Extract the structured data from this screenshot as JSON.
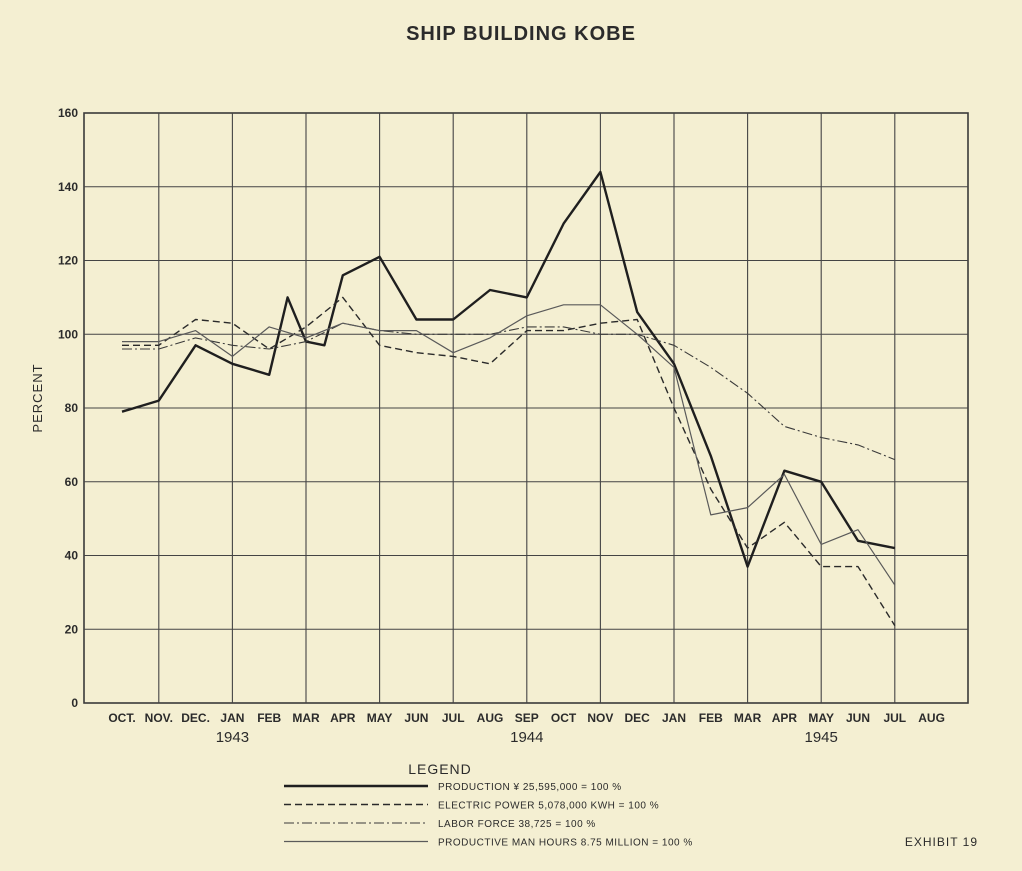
{
  "chart_data": {
    "type": "line",
    "title": "SHIP BUILDING KOBE",
    "ylabel": "PERCENT",
    "ylim": [
      0,
      160
    ],
    "yticks": [
      "0",
      "20",
      "40",
      "60",
      "80",
      "100",
      "120",
      "140",
      "160"
    ],
    "categories": [
      "OCT.",
      "NOV.",
      "DEC.",
      "JAN",
      "FEB",
      "MAR",
      "APR",
      "MAY",
      "JUN",
      "JUL",
      "AUG",
      "SEP",
      "OCT",
      "NOV",
      "DEC",
      "JAN",
      "FEB",
      "MAR",
      "APR",
      "MAY",
      "JUN",
      "JUL",
      "AUG"
    ],
    "years": [
      {
        "label": "1943",
        "center_index": 3
      },
      {
        "label": "1944",
        "center_index": 11
      },
      {
        "label": "1945",
        "center_index": 19
      }
    ],
    "grid": true,
    "series": [
      {
        "name": "PRODUCTION ¥ 25,595,000 = 100 %",
        "style": "solid-heavy",
        "points": [
          [
            0,
            79
          ],
          [
            1,
            82
          ],
          [
            2,
            97
          ],
          [
            3,
            92
          ],
          [
            4,
            89
          ],
          [
            4.5,
            110
          ],
          [
            5,
            98
          ],
          [
            5.5,
            97
          ],
          [
            6,
            116
          ],
          [
            7,
            121
          ],
          [
            8,
            104
          ],
          [
            9,
            104
          ],
          [
            10,
            112
          ],
          [
            11,
            110
          ],
          [
            12,
            130
          ],
          [
            13,
            144
          ],
          [
            14,
            106
          ],
          [
            15,
            92
          ],
          [
            16,
            67
          ],
          [
            17,
            37
          ],
          [
            18,
            63
          ],
          [
            19,
            60
          ],
          [
            20,
            44
          ],
          [
            21,
            42
          ]
        ]
      },
      {
        "name": "ELECTRIC POWER 5,078,000 KWH = 100 %",
        "style": "dashed",
        "points": [
          [
            0,
            97
          ],
          [
            1,
            97
          ],
          [
            2,
            104
          ],
          [
            3,
            103
          ],
          [
            4,
            96
          ],
          [
            5,
            102
          ],
          [
            6,
            110
          ],
          [
            7,
            97
          ],
          [
            8,
            95
          ],
          [
            9,
            94
          ],
          [
            10,
            92
          ],
          [
            11,
            101
          ],
          [
            12,
            101
          ],
          [
            13,
            103
          ],
          [
            14,
            104
          ],
          [
            15,
            80
          ],
          [
            16,
            58
          ],
          [
            17,
            42
          ],
          [
            18,
            49
          ],
          [
            19,
            37
          ],
          [
            20,
            37
          ],
          [
            21,
            21
          ]
        ]
      },
      {
        "name": "LABOR FORCE 38,725 = 100 %",
        "style": "dash-dot",
        "points": [
          [
            0,
            96
          ],
          [
            1,
            96
          ],
          [
            2,
            99
          ],
          [
            3,
            97
          ],
          [
            4,
            96
          ],
          [
            5,
            98
          ],
          [
            6,
            103
          ],
          [
            7,
            101
          ],
          [
            8,
            100
          ],
          [
            9,
            100
          ],
          [
            10,
            100
          ],
          [
            11,
            102
          ],
          [
            12,
            102
          ],
          [
            13,
            100
          ],
          [
            14,
            100
          ],
          [
            15,
            97
          ],
          [
            16,
            91
          ],
          [
            17,
            84
          ],
          [
            18,
            75
          ],
          [
            19,
            72
          ],
          [
            20,
            70
          ],
          [
            21,
            66
          ]
        ]
      },
      {
        "name": "PRODUCTIVE MAN HOURS 8.75 MILLION = 100 %",
        "style": "solid-thin",
        "points": [
          [
            0,
            98
          ],
          [
            1,
            98
          ],
          [
            2,
            101
          ],
          [
            3,
            94
          ],
          [
            4,
            102
          ],
          [
            5,
            99
          ],
          [
            6,
            103
          ],
          [
            7,
            101
          ],
          [
            8,
            101
          ],
          [
            9,
            95
          ],
          [
            10,
            99
          ],
          [
            11,
            105
          ],
          [
            12,
            108
          ],
          [
            13,
            108
          ],
          [
            14,
            100
          ],
          [
            15,
            91
          ],
          [
            16,
            51
          ],
          [
            17,
            53
          ],
          [
            18,
            62
          ],
          [
            19,
            43
          ],
          [
            20,
            47
          ],
          [
            21,
            32
          ]
        ]
      }
    ],
    "legend": {
      "title": "LEGEND",
      "position": "bottom-center"
    },
    "annotation": "EXHIBIT 19"
  }
}
